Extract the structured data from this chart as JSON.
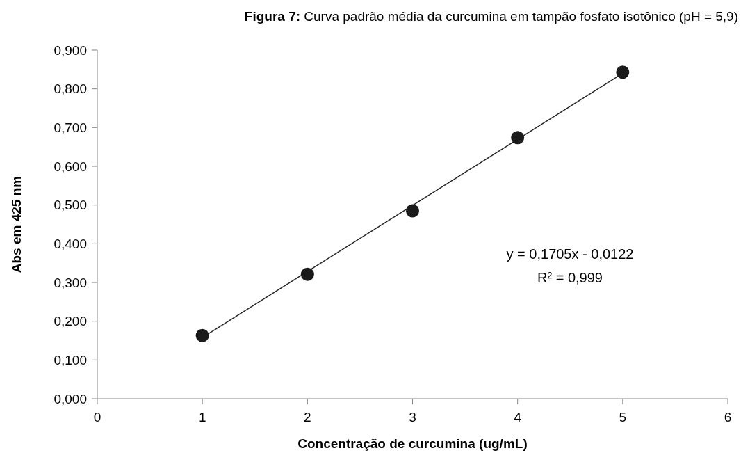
{
  "chart_data": {
    "type": "scatter",
    "title": "Figura 7: Curva padrão média da curcumina em tampão fosfato isotônico (pH = 5,9)",
    "xlabel": "Concentração de curcumina (ug/mL)",
    "ylabel": "Abs em 425 nm",
    "series": [
      {
        "color": "#1a1a1a",
        "marker": "circle",
        "x": [
          1,
          2,
          3,
          4,
          5
        ],
        "values": [
          0.163,
          0.321,
          0.485,
          0.674,
          0.843
        ]
      },
      {
        "type": "line",
        "color": "#262626",
        "marker": "none",
        "line_style": "solid",
        "x": [
          1,
          5
        ],
        "values": [
          0.158,
          0.84
        ]
      }
    ],
    "xlim": [
      0,
      6
    ],
    "xticks": [
      0,
      1,
      2,
      3,
      4,
      5,
      6
    ],
    "ylim": [
      0,
      0.9
    ],
    "yticks": [
      {
        "value": 0,
        "label": "0,000"
      },
      {
        "value": 0.1,
        "label": "0,100"
      },
      {
        "value": 0.2,
        "label": "0,200"
      },
      {
        "value": 0.3,
        "label": "0,300"
      },
      {
        "value": 0.4,
        "label": "0,400"
      },
      {
        "value": 0.5,
        "label": "0,500"
      },
      {
        "value": 0.6,
        "label": "0,600"
      },
      {
        "value": 0.7,
        "label": "0,700"
      },
      {
        "value": 0.8,
        "label": "0,800"
      },
      {
        "value": 0.9,
        "label": "0,900"
      }
    ],
    "grid": false,
    "annotations": [
      "y = 0,1705x - 0,0122",
      "R² = 0,999"
    ]
  }
}
